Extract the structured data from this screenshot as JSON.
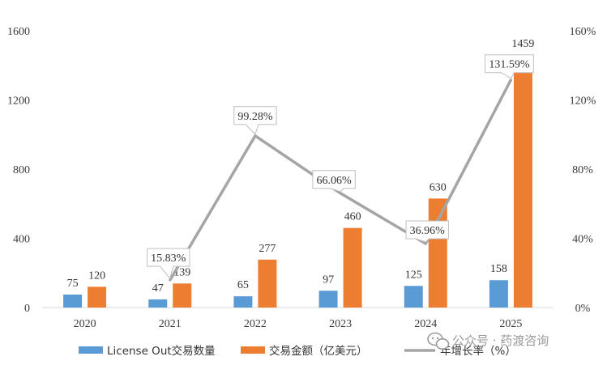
{
  "chart_data": {
    "type": "bar",
    "categories": [
      "2020",
      "2021",
      "2022",
      "2023",
      "2024",
      "2025"
    ],
    "series": [
      {
        "name": "License Out交易数量",
        "kind": "bar",
        "axis": "left",
        "color": "#5b9bd5",
        "values": [
          75,
          47,
          65,
          97,
          125,
          158
        ]
      },
      {
        "name": "交易金额（亿美元）",
        "kind": "bar",
        "axis": "left",
        "color": "#ed7d31",
        "values": [
          120,
          139,
          277,
          460,
          630,
          1459
        ]
      },
      {
        "name": "年增长率（%）",
        "kind": "line",
        "axis": "right",
        "color": "#a5a5a5",
        "values": [
          null,
          15.83,
          99.28,
          66.06,
          36.96,
          131.59
        ],
        "labels": [
          "",
          "15.83%",
          "99.28%",
          "66.06%",
          "36.96%",
          "131.59%"
        ]
      }
    ],
    "ylim": [
      0,
      1600
    ],
    "yticks": [
      "0",
      "400",
      "800",
      "1200",
      "1600"
    ],
    "y2lim": [
      0,
      160
    ],
    "y2ticks": [
      "0%",
      "40%",
      "80%",
      "120%",
      "160%"
    ],
    "grid": false,
    "legend": "bottom"
  },
  "watermark": {
    "text": "公众号 · 药渡咨询",
    "icon": "wechat-icon"
  }
}
